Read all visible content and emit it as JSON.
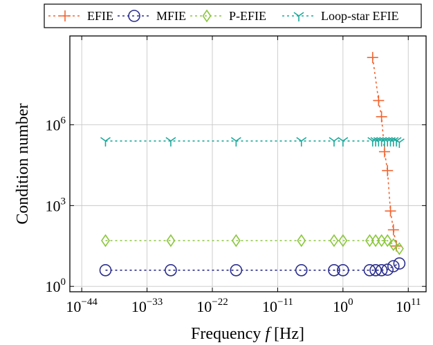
{
  "chart_data": {
    "type": "line",
    "xlabel_prefix": "Frequency",
    "xlabel_var": "f",
    "xlabel_unit": "[Hz]",
    "ylabel": "Condition number",
    "x_scale": "log",
    "y_scale": "log",
    "xlim_exp": [
      -46,
      14
    ],
    "ylim_exp": [
      -0.2,
      9.3
    ],
    "x_ticks": [
      {
        "base": "10",
        "exp": "−44",
        "value_exp": -44
      },
      {
        "base": "10",
        "exp": "−33",
        "value_exp": -33
      },
      {
        "base": "10",
        "exp": "−22",
        "value_exp": -22
      },
      {
        "base": "10",
        "exp": "−11",
        "value_exp": -11
      },
      {
        "base": "10",
        "exp": "0",
        "value_exp": 0
      },
      {
        "base": "10",
        "exp": "11",
        "value_exp": 11
      }
    ],
    "y_ticks": [
      {
        "base": "10",
        "exp": "0",
        "value_exp": 0
      },
      {
        "base": "10",
        "exp": "3",
        "value_exp": 3
      },
      {
        "base": "10",
        "exp": "6",
        "value_exp": 6
      }
    ],
    "grid": true,
    "legend_position": "top",
    "series": [
      {
        "name": "EFIE",
        "color": "#f26430",
        "marker": "plus",
        "x_exp": [
          5,
          6,
          6.5,
          7,
          7.5,
          8,
          8.5,
          9
        ],
        "y_exp": [
          8.5,
          6.9,
          6.3,
          5.0,
          4.3,
          2.8,
          2.1,
          1.5
        ]
      },
      {
        "name": "MFIE",
        "color": "#2b2e8c",
        "marker": "circle",
        "x_exp": [
          -40,
          -29,
          -18,
          -7,
          -1.5,
          0,
          4.5,
          5.5,
          6.5,
          7.5,
          8.5,
          9.5
        ],
        "y_exp": [
          0.6,
          0.6,
          0.6,
          0.6,
          0.6,
          0.6,
          0.6,
          0.6,
          0.6,
          0.62,
          0.75,
          0.85
        ]
      },
      {
        "name": "P-EFIE",
        "color": "#8cc63f",
        "marker": "diamond",
        "x_exp": [
          -40,
          -29,
          -18,
          -7,
          -1.5,
          0,
          4.5,
          5.5,
          6.5,
          7.5,
          8.5,
          9.5
        ],
        "y_exp": [
          1.7,
          1.7,
          1.7,
          1.7,
          1.7,
          1.7,
          1.7,
          1.7,
          1.7,
          1.7,
          1.55,
          1.4
        ]
      },
      {
        "name": "Loop-star EFIE",
        "color": "#1aa89a",
        "marker": "tri",
        "x_exp": [
          -40,
          -29,
          -18,
          -7,
          -1.5,
          0,
          5,
          5.5,
          6,
          6.5,
          7,
          7.5,
          8,
          8.5,
          9,
          9.5
        ],
        "y_exp": [
          5.4,
          5.4,
          5.4,
          5.4,
          5.4,
          5.4,
          5.4,
          5.4,
          5.4,
          5.4,
          5.4,
          5.4,
          5.4,
          5.4,
          5.4,
          5.35
        ]
      }
    ]
  }
}
